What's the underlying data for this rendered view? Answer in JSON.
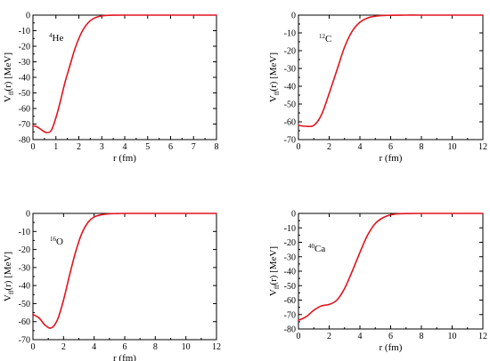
{
  "figure": {
    "colors": {
      "curve": "#e0141e",
      "axis": "#000000",
      "background": "#ffffff"
    }
  },
  "chart_data": [
    {
      "id": "he4",
      "type": "line",
      "nucleus_mass": "4",
      "nucleus_symbol": "He",
      "xlabel": "r (fm)",
      "ylabel_main": "V",
      "ylabel_sub": "ff",
      "ylabel_rest": "(r)  [MeV]",
      "xlim": [
        0,
        8
      ],
      "ylim": [
        -80,
        0
      ],
      "xticks": [
        0,
        1,
        2,
        3,
        4,
        5,
        6,
        7,
        8
      ],
      "xtick_labels": [
        "0",
        "1",
        "2",
        "3",
        "4",
        "5",
        "6",
        "7",
        "8"
      ],
      "yticks": [
        0,
        -10,
        -20,
        -30,
        -40,
        -50,
        -60,
        -70,
        -80
      ],
      "ytick_labels": [
        "0",
        "-10",
        "-20",
        "-30",
        "-40",
        "-50",
        "-60",
        "-70",
        "-80"
      ],
      "series": [
        {
          "color": "#e0141e",
          "x": [
            0,
            0.2,
            0.4,
            0.6,
            0.8,
            1.0,
            1.2,
            1.4,
            1.6,
            1.8,
            2.0,
            2.2,
            2.4,
            2.6,
            2.8,
            3.0,
            3.2,
            3.5,
            4.0,
            5.0,
            6.0,
            7.0,
            8.0
          ],
          "y": [
            -71,
            -72,
            -74,
            -75.5,
            -74,
            -66,
            -55,
            -43,
            -33,
            -23,
            -15,
            -9,
            -5,
            -2.5,
            -1.2,
            -0.5,
            -0.2,
            -0.05,
            0,
            0,
            0,
            0,
            0
          ]
        }
      ]
    },
    {
      "id": "c12",
      "type": "line",
      "nucleus_mass": "12",
      "nucleus_symbol": "C",
      "xlabel": "r (fm)",
      "ylabel_main": "V",
      "ylabel_sub": "ff",
      "ylabel_rest": "(r)  [MeV]",
      "xlim": [
        0,
        12
      ],
      "ylim": [
        -70,
        0
      ],
      "xticks": [
        0,
        2,
        4,
        6,
        8,
        10,
        12
      ],
      "xtick_labels": [
        "0",
        "2",
        "4",
        "6",
        "8",
        "10",
        "12"
      ],
      "yticks": [
        0,
        -10,
        -20,
        -30,
        -40,
        -50,
        -60,
        -70
      ],
      "ytick_labels": [
        "0",
        "-10",
        "-20",
        "-30",
        "-40",
        "-50",
        "-60",
        "-70"
      ],
      "series": [
        {
          "color": "#e0141e",
          "x": [
            0,
            0.5,
            1.0,
            1.5,
            2.0,
            2.5,
            3.0,
            3.5,
            4.0,
            4.5,
            5.0,
            5.5,
            6.0,
            7.0,
            8.0,
            10.0,
            12.0
          ],
          "y": [
            -62,
            -62.5,
            -62,
            -56,
            -44,
            -31,
            -18,
            -9,
            -4,
            -1.6,
            -0.6,
            -0.2,
            -0.1,
            0,
            0,
            0,
            0
          ]
        }
      ]
    },
    {
      "id": "o16",
      "type": "line",
      "nucleus_mass": "16",
      "nucleus_symbol": "O",
      "xlabel": "r (fm)",
      "ylabel_main": "V",
      "ylabel_sub": "ff",
      "ylabel_rest": "(r)  [MeV]",
      "xlim": [
        0,
        12
      ],
      "ylim": [
        -70,
        0
      ],
      "xticks": [
        0,
        2,
        4,
        6,
        8,
        10,
        12
      ],
      "xtick_labels": [
        "0",
        "2",
        "4",
        "6",
        "8",
        "10",
        "12"
      ],
      "yticks": [
        0,
        -10,
        -20,
        -30,
        -40,
        -50,
        -60,
        -70
      ],
      "ytick_labels": [
        "0",
        "-10",
        "-20",
        "-30",
        "-40",
        "-50",
        "-60",
        "-70"
      ],
      "series": [
        {
          "color": "#e0141e",
          "x": [
            0,
            0.4,
            0.8,
            1.2,
            1.6,
            2.0,
            2.4,
            2.8,
            3.2,
            3.6,
            4.0,
            4.5,
            5.0,
            5.5,
            6.0,
            7.0,
            8.0,
            10.0,
            12.0
          ],
          "y": [
            -56,
            -58,
            -62,
            -63.5,
            -59,
            -48,
            -34,
            -21,
            -11,
            -5,
            -2,
            -0.7,
            -0.2,
            -0.1,
            0,
            0,
            0,
            0,
            0
          ]
        }
      ]
    },
    {
      "id": "ca40",
      "type": "line",
      "nucleus_mass": "40",
      "nucleus_symbol": "Ca",
      "xlabel": "r (fm)",
      "ylabel_main": "V",
      "ylabel_sub": "ff",
      "ylabel_rest": "(r)  [MeV]",
      "xlim": [
        0,
        12
      ],
      "ylim": [
        -80,
        0
      ],
      "xticks": [
        0,
        2,
        4,
        6,
        8,
        10,
        12
      ],
      "xtick_labels": [
        "0",
        "2",
        "4",
        "6",
        "8",
        "10",
        "12"
      ],
      "yticks": [
        0,
        -10,
        -20,
        -30,
        -40,
        -50,
        -60,
        -70,
        -80
      ],
      "ytick_labels": [
        "0",
        "-10",
        "-20",
        "-30",
        "-40",
        "-50",
        "-60",
        "-70",
        "-80"
      ],
      "series": [
        {
          "color": "#e0141e",
          "x": [
            0,
            0.5,
            1.0,
            1.5,
            2.0,
            2.5,
            3.0,
            3.5,
            4.0,
            4.5,
            5.0,
            5.5,
            6.0,
            6.5,
            7.0,
            8.0,
            10.0,
            12.0
          ],
          "y": [
            -74,
            -71.5,
            -67,
            -64,
            -63,
            -60,
            -52,
            -40,
            -27,
            -15,
            -7,
            -3,
            -1,
            -0.3,
            -0.1,
            0,
            0,
            0
          ]
        }
      ]
    }
  ]
}
